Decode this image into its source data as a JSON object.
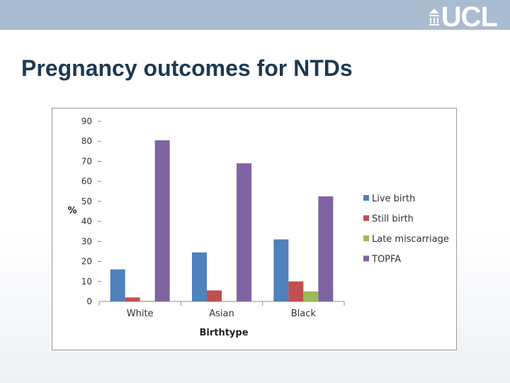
{
  "header": {
    "logo_text": "UCL",
    "logo_mark_icon": "ucl-portico-icon",
    "banner_color": "#a9bcd0"
  },
  "slide": {
    "title": "Pregnancy outcomes for NTDs"
  },
  "chart_data": {
    "type": "bar",
    "title": "",
    "xlabel": "Birthtype",
    "ylabel": "%",
    "ylim": [
      0,
      90
    ],
    "yticks": [
      0,
      10,
      20,
      30,
      40,
      50,
      60,
      70,
      80,
      90
    ],
    "categories": [
      "White",
      "Asian",
      "Black"
    ],
    "grid": false,
    "legend_position": "right",
    "series": [
      {
        "name": "Live birth",
        "color": "#4f81bd",
        "values": [
          16,
          24.5,
          31
        ]
      },
      {
        "name": "Still birth",
        "color": "#c0504d",
        "values": [
          2,
          5.5,
          10
        ]
      },
      {
        "name": "Late miscarriage",
        "color": "#9bbb59",
        "values": [
          0.3,
          0,
          5
        ]
      },
      {
        "name": "TOPFA",
        "color": "#8064a2",
        "values": [
          80.5,
          69,
          52.5
        ]
      }
    ]
  }
}
